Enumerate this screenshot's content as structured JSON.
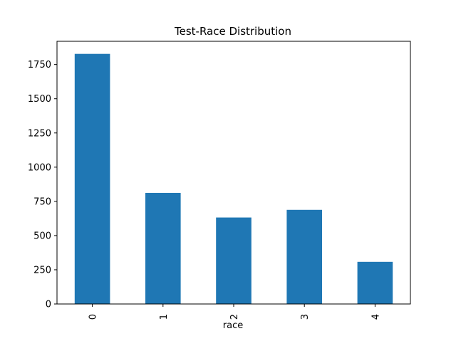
{
  "chart_data": {
    "type": "bar",
    "title": "Test-Race Distribution",
    "xlabel": "race",
    "ylabel": "",
    "categories": [
      "0",
      "1",
      "2",
      "3",
      "4"
    ],
    "values": [
      1828,
      812,
      632,
      688,
      308
    ],
    "ylim": [
      0,
      1920
    ],
    "yticks": [
      0,
      250,
      500,
      750,
      1000,
      1250,
      1500,
      1750
    ],
    "bar_color": "#1f77b4",
    "grid": false,
    "legend": "none",
    "xtick_rotation": "vertical"
  }
}
